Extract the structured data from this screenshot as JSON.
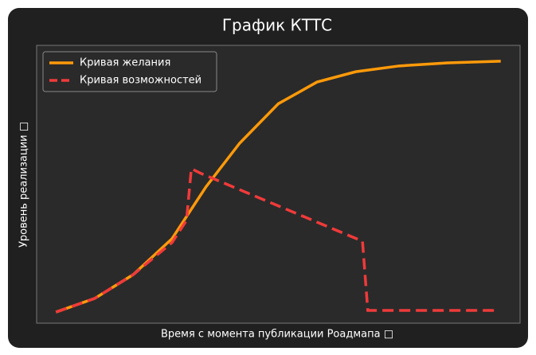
{
  "chart_data": {
    "type": "line",
    "title": "График КТТС",
    "x_label": "Время с момента публикации Роадмапа □",
    "y_label": "Уровень реализации □",
    "xlim": [
      0,
      100
    ],
    "ylim": [
      0,
      100
    ],
    "grid": false,
    "legend": "upper left",
    "series": [
      {
        "name": "Кривая желания",
        "color": "#ff9a0a",
        "style": "solid",
        "x": [
          4,
          12,
          20,
          28,
          35,
          42,
          50,
          58,
          66,
          75,
          85,
          96
        ],
        "values": [
          4,
          8.9,
          17.5,
          30.4,
          49,
          64.8,
          79,
          86.8,
          90.5,
          92.6,
          93.7,
          94.3
        ]
      },
      {
        "name": "Кривая возможностей",
        "color": "#f03a3a",
        "style": "dashed",
        "x": [
          4,
          12,
          20,
          28,
          31,
          32,
          34,
          67.4,
          68.5,
          94.6
        ],
        "values": [
          4,
          8.9,
          17.5,
          29,
          37,
          55.6,
          53.9,
          29.5,
          4.6,
          4.6
        ]
      }
    ]
  }
}
